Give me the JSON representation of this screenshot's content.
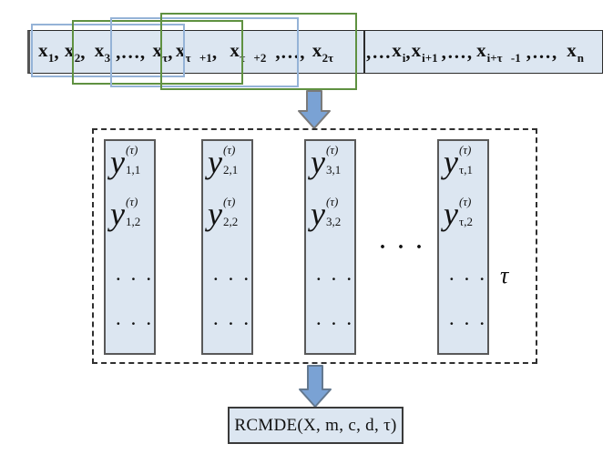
{
  "colors": {
    "bar_fill": "#dce6f1",
    "blue_window": "#95b3d7",
    "green_window": "#5f9141",
    "arrow_fill": "#7aa2d4",
    "arrow_border_top": "#7a7a7a",
    "arrow_border_bottom": "#63788f",
    "box_border": "#2f2f2f"
  },
  "sequence": {
    "tokens_left": [
      {
        "t": "x",
        "sub": "1"
      },
      {
        "t": ", "
      },
      {
        "t": "x",
        "sub": "2"
      },
      {
        "t": ", "
      },
      {
        "t": "x",
        "sub": "3"
      },
      {
        "t": ",…,"
      },
      {
        "t": "x",
        "sub": "τ"
      },
      {
        "t": " ,"
      },
      {
        "t": "x",
        "sub": "τ +1"
      },
      {
        "t": ","
      },
      {
        "t": "x",
        "sub": "τ +2"
      },
      {
        "t": ",…,"
      },
      {
        "t": "x",
        "sub": "2τ"
      }
    ],
    "tokens_right": [
      {
        "t": ",…"
      },
      {
        "t": "x",
        "sub": "i"
      },
      {
        "t": ","
      },
      {
        "t": "x",
        "sub": "i+1"
      },
      {
        "t": ",…,"
      },
      {
        "t": "x",
        "sub": "i+τ -1"
      },
      {
        "t": ",…,"
      },
      {
        "t": "x",
        "sub": "n"
      }
    ]
  },
  "windows": [
    {
      "name": "window-rect-1",
      "color_key": "blue"
    },
    {
      "name": "window-rect-2",
      "color_key": "green"
    },
    {
      "name": "window-rect-3",
      "color_key": "blue"
    },
    {
      "name": "window-rect-4",
      "color_key": "green"
    }
  ],
  "matrix": {
    "base": "y",
    "sup": "(τ)",
    "columns": [
      {
        "rows": [
          "1,1",
          "1,2"
        ]
      },
      {
        "rows": [
          "2,1",
          "2,2"
        ]
      },
      {
        "rows": [
          "3,1",
          "3,2"
        ]
      },
      {
        "rows": [
          "τ,1",
          "τ,2"
        ]
      }
    ],
    "column_dots": "···",
    "between_dots": "···",
    "tau_label": "τ"
  },
  "output_box": {
    "label": "RCMDE(X, m, c, d, τ)"
  }
}
